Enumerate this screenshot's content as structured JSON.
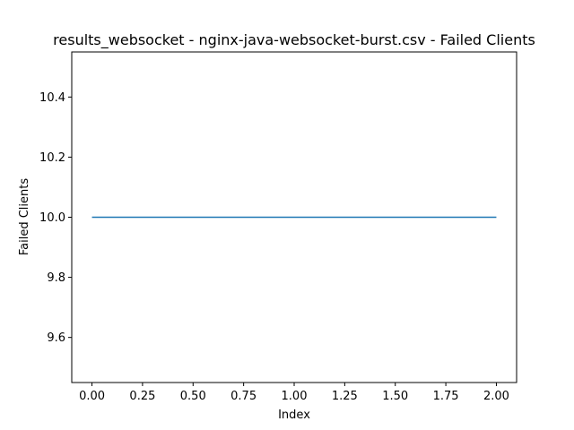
{
  "chart_data": {
    "type": "line",
    "title": "results_websocket - nginx-java-websocket-burst.csv - Failed Clients",
    "xlabel": "Index",
    "ylabel": "Failed Clients",
    "x": [
      0,
      1,
      2
    ],
    "series": [
      {
        "values": [
          10.0,
          10.0,
          10.0
        ],
        "color": "#1f77b4"
      }
    ],
    "xlim": [
      -0.1,
      2.1
    ],
    "ylim": [
      9.45,
      10.55
    ],
    "xticks": [
      0.0,
      0.25,
      0.5,
      0.75,
      1.0,
      1.25,
      1.5,
      1.75,
      2.0
    ],
    "xtick_labels": [
      "0.00",
      "0.25",
      "0.50",
      "0.75",
      "1.00",
      "1.25",
      "1.50",
      "1.75",
      "2.00"
    ],
    "yticks": [
      9.6,
      9.8,
      10.0,
      10.2,
      10.4
    ],
    "ytick_labels": [
      "9.6",
      "9.8",
      "10.0",
      "10.2",
      "10.4"
    ],
    "grid": false,
    "legend": "none"
  }
}
